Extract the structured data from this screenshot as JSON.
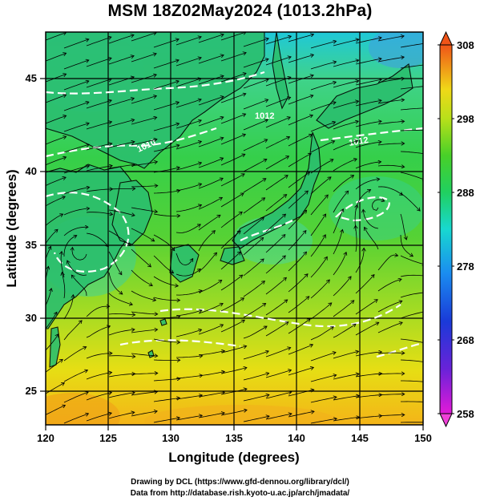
{
  "title": "MSM 18Z02May2024 (1013.2hPa)",
  "x_axis": {
    "label": "Longitude (degrees)",
    "ticks": [
      "120",
      "125",
      "130",
      "135",
      "140",
      "145",
      "150"
    ]
  },
  "y_axis": {
    "label": "Latitude  (degrees)",
    "ticks": [
      "25",
      "30",
      "35",
      "40",
      "45"
    ]
  },
  "colorbar": {
    "ticks": [
      "308",
      "298",
      "288",
      "278",
      "268",
      "258"
    ],
    "min": 258,
    "max": 308
  },
  "contour_labels": [
    "1010",
    "1012",
    "1012"
  ],
  "map": {
    "lon_range": [
      120,
      150
    ],
    "lat_range": [
      22.7,
      48
    ],
    "field": "temperature (K)",
    "overlays": [
      "wind streamlines",
      "pressure isobars",
      "coastlines",
      "lat/lon grid"
    ]
  },
  "footer": {
    "line1": "Drawing by DCL (https://www.gfd-dennou.org/library/dcl/)",
    "line2": "Data from http://database.rish.kyoto-u.ac.jp/arch/jmadata/"
  }
}
